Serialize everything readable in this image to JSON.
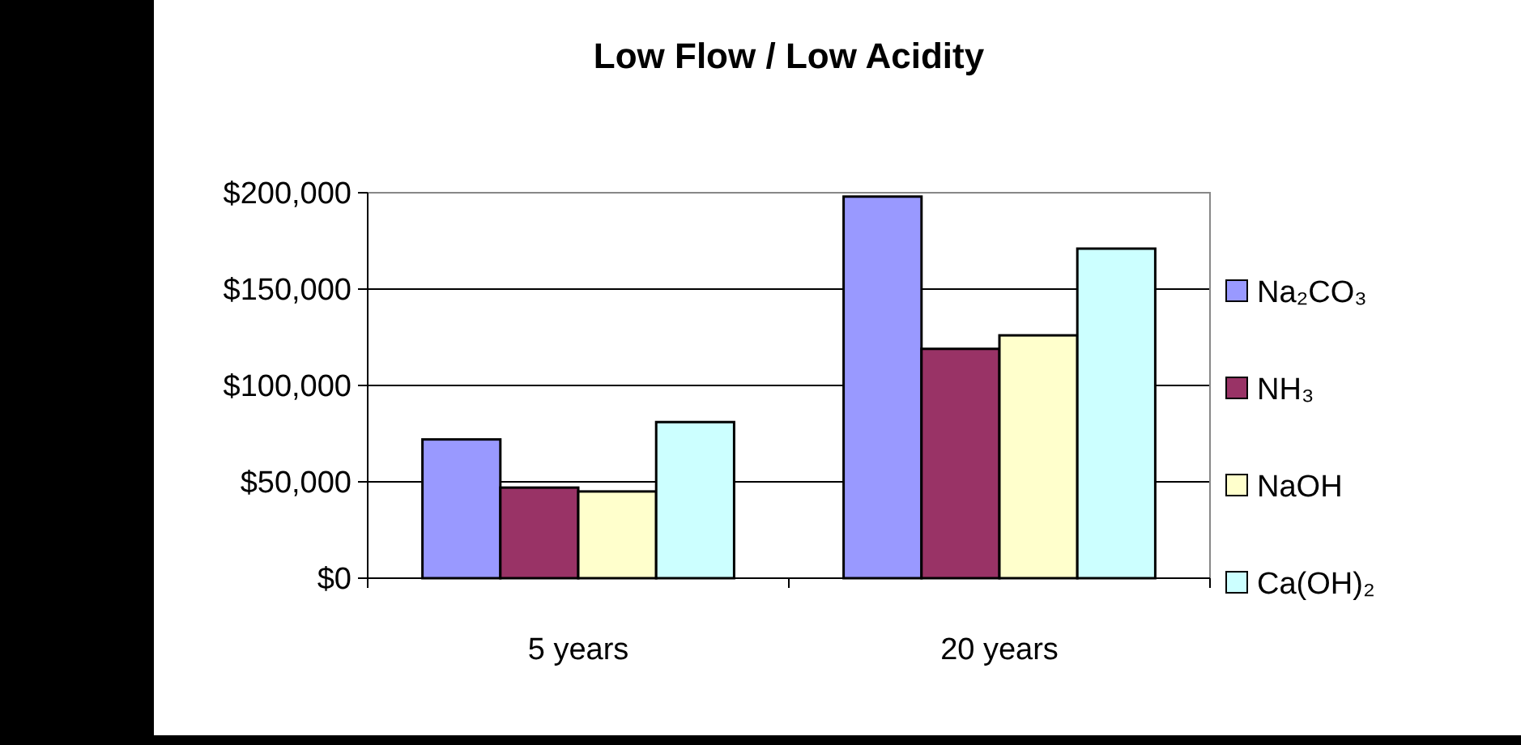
{
  "chart_data": {
    "type": "bar",
    "title": "Low Flow / Low Acidity",
    "categories": [
      "5 years",
      "20 years"
    ],
    "series": [
      {
        "name": "Na₂CO₃",
        "color": "#9999ff",
        "values": [
          72000,
          198000
        ]
      },
      {
        "name": "NH₃",
        "color": "#993366",
        "values": [
          47000,
          119000
        ]
      },
      {
        "name": "NaOH",
        "color": "#ffffcc",
        "values": [
          45000,
          126000
        ]
      },
      {
        "name": "Ca(OH)₂",
        "color": "#ccffff",
        "values": [
          81000,
          171000
        ]
      }
    ],
    "ylim": [
      0,
      200000
    ],
    "yticks": [
      {
        "value": 0,
        "label": "$0"
      },
      {
        "value": 50000,
        "label": "$50,000"
      },
      {
        "value": 100000,
        "label": "$100,000"
      },
      {
        "value": 150000,
        "label": "$150,000"
      },
      {
        "value": 200000,
        "label": "$200,000"
      }
    ],
    "grid": "y",
    "legend": "right"
  }
}
